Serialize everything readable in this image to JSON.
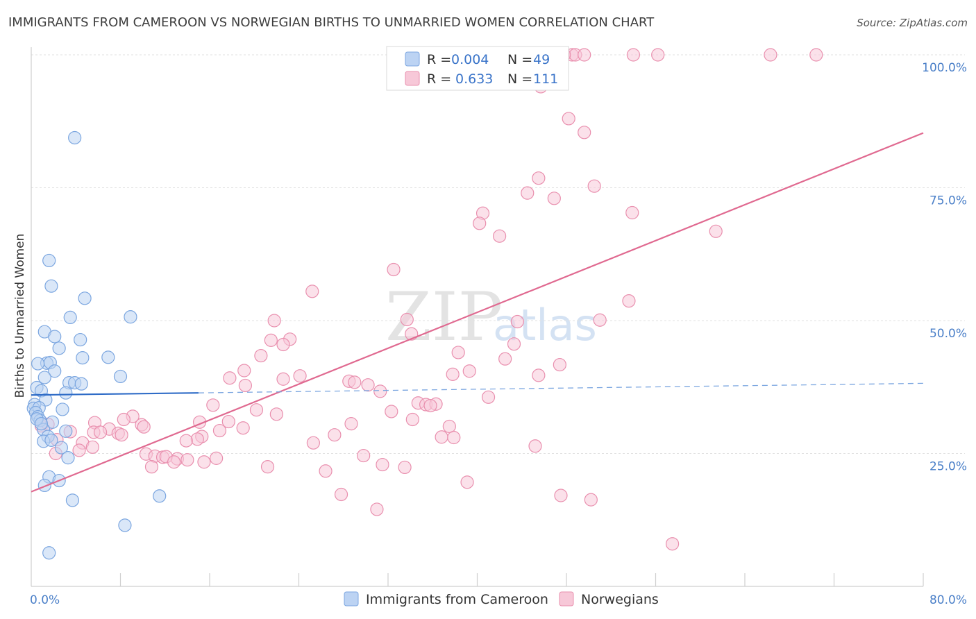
{
  "chart_data": {
    "type": "scatter",
    "title": "IMMIGRANTS FROM CAMEROON VS NORWEGIAN BIRTHS TO UNMARRIED WOMEN CORRELATION CHART",
    "source": "Source: ZipAtlas.com",
    "watermark": {
      "zip": "ZIP",
      "atlas": "atlas"
    },
    "xlabel": "",
    "ylabel": "Births to Unmarried Women",
    "xlim": [
      0,
      80
    ],
    "ylim": [
      0,
      105
    ],
    "x_tick_labels": [
      {
        "value": 0,
        "label": "0.0%"
      },
      {
        "value": 80,
        "label": "80.0%"
      }
    ],
    "y_tick_labels": [
      {
        "value": 25,
        "label": "25.0%"
      },
      {
        "value": 50,
        "label": "50.0%"
      },
      {
        "value": 75,
        "label": "75.0%"
      },
      {
        "value": 100,
        "label": "100.0%"
      }
    ],
    "legend": [
      {
        "r_label": "R = ",
        "r_value": "0.004",
        "n_label": "N = ",
        "n_value": "49"
      },
      {
        "r_label": "R = ",
        "r_value": "0.633",
        "n_label": "N = ",
        "n_value": "111"
      }
    ],
    "series": [
      {
        "name": "Immigrants from Cameroon",
        "color": "#7ba6e0",
        "fill": "#bcd3f3",
        "trend": {
          "x0": 0,
          "y0": 36.0,
          "x1": 15,
          "y1": 36.4,
          "color": "#2f6cc7"
        },
        "trend_ext": {
          "x0": 15,
          "y0": 36.4,
          "x1": 80,
          "y1": 38.2
        },
        "points": [
          [
            3.9,
            84.4
          ],
          [
            1.6,
            61.3
          ],
          [
            1.8,
            56.5
          ],
          [
            4.8,
            54.2
          ],
          [
            3.5,
            50.6
          ],
          [
            8.9,
            50.7
          ],
          [
            1.2,
            47.9
          ],
          [
            2.1,
            47.0
          ],
          [
            4.4,
            46.4
          ],
          [
            2.5,
            44.8
          ],
          [
            4.6,
            43.0
          ],
          [
            6.9,
            43.1
          ],
          [
            8.0,
            39.5
          ],
          [
            1.4,
            42.0
          ],
          [
            1.7,
            42.1
          ],
          [
            0.6,
            41.9
          ],
          [
            2.1,
            40.5
          ],
          [
            1.2,
            39.3
          ],
          [
            3.4,
            38.3
          ],
          [
            3.9,
            38.3
          ],
          [
            4.5,
            38.1
          ],
          [
            0.5,
            37.4
          ],
          [
            0.9,
            36.8
          ],
          [
            3.1,
            36.4
          ],
          [
            1.3,
            35.1
          ],
          [
            0.3,
            34.2
          ],
          [
            0.2,
            33.5
          ],
          [
            0.7,
            33.6
          ],
          [
            2.8,
            33.3
          ],
          [
            0.4,
            32.7
          ],
          [
            0.6,
            31.9
          ],
          [
            0.8,
            31.2
          ],
          [
            0.5,
            31.5
          ],
          [
            1.9,
            30.9
          ],
          [
            1.1,
            29.5
          ],
          [
            3.1,
            29.2
          ],
          [
            1.5,
            28.2
          ],
          [
            1.1,
            27.3
          ],
          [
            1.8,
            27.5
          ],
          [
            2.7,
            26.1
          ],
          [
            3.3,
            24.2
          ],
          [
            1.6,
            20.6
          ],
          [
            2.5,
            19.9
          ],
          [
            1.2,
            19.0
          ],
          [
            11.5,
            17.0
          ],
          [
            3.7,
            16.2
          ],
          [
            8.4,
            11.5
          ],
          [
            1.6,
            6.3
          ],
          [
            0.9,
            30.6
          ]
        ]
      },
      {
        "name": "Norwegians",
        "color": "#e98fae",
        "fill": "#f7c8d8",
        "trend": {
          "x0": 0,
          "y0": 17.8,
          "x1": 80,
          "y1": 85.3,
          "color": "#e06990"
        },
        "points": [
          [
            48.5,
            100
          ],
          [
            48.8,
            100
          ],
          [
            49.6,
            100
          ],
          [
            54.0,
            100
          ],
          [
            56.2,
            100
          ],
          [
            66.3,
            100
          ],
          [
            70.4,
            100
          ],
          [
            47.8,
            100
          ],
          [
            45.7,
            94.0
          ],
          [
            48.2,
            88.0
          ],
          [
            49.6,
            85.4
          ],
          [
            45.5,
            76.8
          ],
          [
            50.5,
            75.3
          ],
          [
            44.5,
            74.0
          ],
          [
            46.9,
            73.0
          ],
          [
            40.5,
            70.2
          ],
          [
            53.9,
            70.3
          ],
          [
            40.2,
            68.3
          ],
          [
            42.0,
            65.9
          ],
          [
            61.4,
            66.8
          ],
          [
            32.5,
            59.6
          ],
          [
            25.2,
            55.5
          ],
          [
            53.6,
            53.7
          ],
          [
            21.8,
            50.0
          ],
          [
            33.7,
            50.2
          ],
          [
            43.6,
            49.8
          ],
          [
            51.0,
            50.1
          ],
          [
            34.1,
            47.5
          ],
          [
            23.2,
            46.5
          ],
          [
            21.5,
            46.3
          ],
          [
            22.6,
            45.5
          ],
          [
            43.3,
            45.6
          ],
          [
            38.3,
            44.0
          ],
          [
            20.6,
            43.4
          ],
          [
            42.5,
            42.8
          ],
          [
            47.4,
            41.7
          ],
          [
            19.1,
            40.6
          ],
          [
            37.8,
            39.9
          ],
          [
            39.3,
            40.5
          ],
          [
            24.1,
            39.6
          ],
          [
            45.5,
            39.7
          ],
          [
            17.8,
            39.2
          ],
          [
            22.6,
            39.0
          ],
          [
            28.5,
            38.6
          ],
          [
            29.0,
            38.4
          ],
          [
            30.2,
            37.9
          ],
          [
            19.2,
            37.8
          ],
          [
            31.3,
            36.7
          ],
          [
            41.0,
            35.6
          ],
          [
            34.7,
            34.5
          ],
          [
            35.4,
            34.2
          ],
          [
            36.3,
            34.3
          ],
          [
            35.8,
            34.0
          ],
          [
            16.3,
            34.1
          ],
          [
            20.2,
            33.2
          ],
          [
            32.3,
            32.9
          ],
          [
            22.0,
            32.4
          ],
          [
            9.1,
            32.0
          ],
          [
            8.3,
            31.4
          ],
          [
            17.7,
            31.0
          ],
          [
            28.7,
            30.6
          ],
          [
            34.2,
            31.4
          ],
          [
            15.1,
            30.9
          ],
          [
            5.7,
            30.8
          ],
          [
            9.9,
            30.4
          ],
          [
            10.1,
            30.0
          ],
          [
            7.0,
            29.6
          ],
          [
            37.5,
            30.1
          ],
          [
            19.0,
            29.8
          ],
          [
            16.9,
            29.3
          ],
          [
            5.6,
            29.0
          ],
          [
            6.2,
            29.0
          ],
          [
            3.5,
            29.1
          ],
          [
            7.8,
            28.8
          ],
          [
            8.1,
            28.5
          ],
          [
            27.2,
            28.5
          ],
          [
            15.3,
            28.2
          ],
          [
            36.8,
            28.1
          ],
          [
            37.9,
            28.0
          ],
          [
            14.9,
            27.7
          ],
          [
            13.9,
            27.4
          ],
          [
            25.3,
            27.0
          ],
          [
            4.6,
            27.0
          ],
          [
            5.5,
            26.2
          ],
          [
            45.2,
            26.4
          ],
          [
            4.3,
            25.6
          ],
          [
            2.2,
            25.0
          ],
          [
            10.3,
            24.9
          ],
          [
            11.1,
            24.5
          ],
          [
            11.8,
            24.3
          ],
          [
            12.1,
            24.4
          ],
          [
            13.1,
            24.0
          ],
          [
            14.0,
            23.8
          ],
          [
            12.8,
            23.4
          ],
          [
            15.5,
            23.4
          ],
          [
            16.6,
            24.1
          ],
          [
            29.8,
            24.6
          ],
          [
            31.5,
            22.9
          ],
          [
            33.5,
            22.4
          ],
          [
            21.2,
            22.5
          ],
          [
            26.4,
            21.7
          ],
          [
            10.8,
            22.5
          ],
          [
            39.1,
            19.6
          ],
          [
            27.8,
            17.3
          ],
          [
            47.5,
            17.1
          ],
          [
            50.2,
            16.3
          ],
          [
            31.0,
            14.5
          ],
          [
            57.5,
            8.0
          ],
          [
            0.9,
            30.2
          ],
          [
            1.5,
            30.5
          ],
          [
            2.3,
            27.6
          ]
        ]
      }
    ]
  }
}
